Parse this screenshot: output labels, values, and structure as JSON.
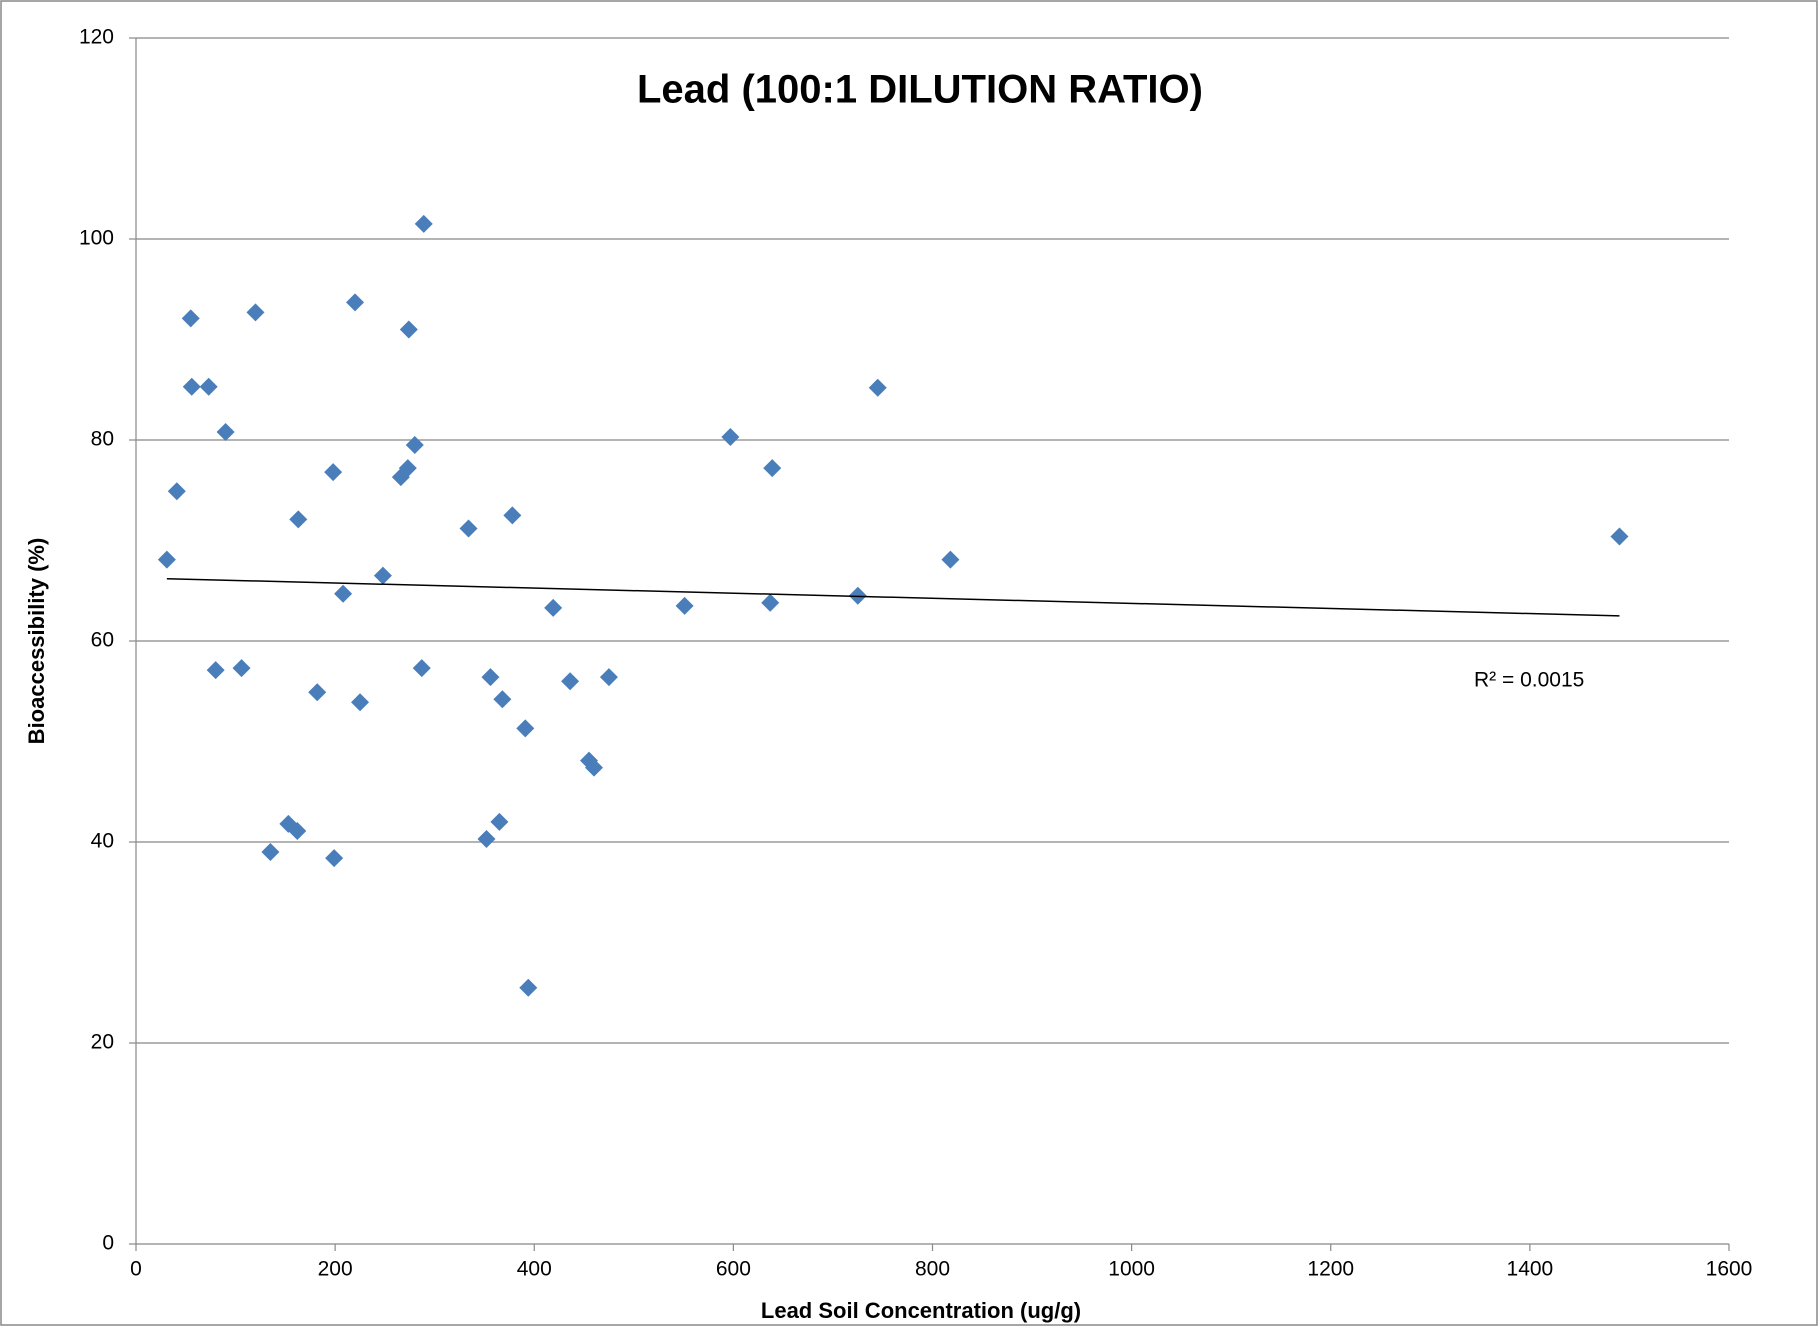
{
  "chart_data": {
    "type": "scatter",
    "title": "Lead (100:1 DILUTION RATIO)",
    "x_label": "Lead Soil Concentration (ug/g)",
    "y_label": "Bioaccessibility (%)",
    "series": [
      {
        "color": "#4a7ebb",
        "x": [
          31,
          41,
          55,
          56,
          73,
          80,
          90,
          106,
          120,
          135,
          153,
          162,
          163,
          182,
          198,
          199,
          208,
          220,
          225,
          248,
          266,
          273,
          274,
          280,
          287,
          289,
          334,
          352,
          356,
          365,
          368,
          378,
          391,
          394,
          419,
          436,
          455,
          460,
          475,
          551,
          597,
          637,
          639,
          725,
          745,
          818,
          1490
        ],
        "values": [
          68.1,
          74.9,
          92.1,
          85.3,
          85.3,
          57.1,
          80.8,
          57.3,
          92.7,
          39.0,
          41.8,
          41.1,
          72.1,
          54.9,
          76.8,
          38.4,
          64.7,
          93.7,
          53.9,
          66.5,
          76.3,
          77.2,
          91.0,
          79.5,
          57.3,
          101.5,
          71.2,
          40.3,
          56.4,
          42.0,
          54.2,
          72.5,
          51.3,
          25.5,
          63.3,
          56.0,
          48.1,
          47.4,
          56.4,
          63.5,
          80.3,
          63.8,
          77.2,
          64.5,
          85.2,
          68.1,
          70.4
        ]
      }
    ],
    "trendline": {
      "x": [
        31,
        1490
      ],
      "values": [
        66.2,
        62.5
      ],
      "color": "#000000",
      "label": "R² = 0.0015"
    },
    "xlim": [
      0,
      1600
    ],
    "xticks": [
      0,
      200,
      400,
      600,
      800,
      1000,
      1200,
      1400,
      1600
    ],
    "ylim": [
      0,
      120
    ],
    "yticks": [
      0,
      20,
      40,
      60,
      80,
      100,
      120
    ],
    "grid": true
  }
}
